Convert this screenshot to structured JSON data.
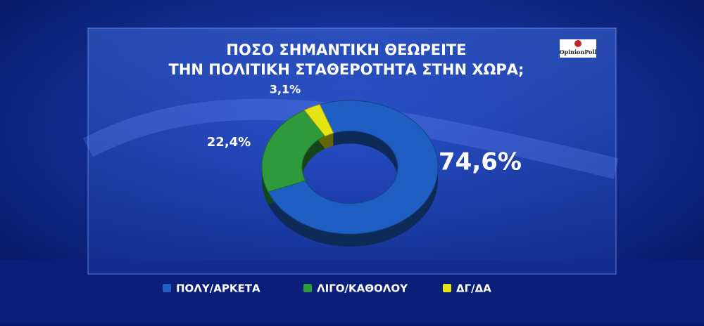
{
  "logo": "OpinionPoll",
  "chart_data": {
    "type": "donut",
    "title": [
      "ΠΟΣΟ ΣΗΜΑΝΤΙΚΗ ΘΕΩΡΕΙΤΕ",
      "ΤΗΝ ΠΟΛΙΤΙΚΗ ΣΤΑΘΕΡΟΤΗΤΑ ΣΤΗΝ ΧΩΡΑ;"
    ],
    "categories": [
      "ΠΟΛΥ/ΑΡΚΕΤΑ",
      "ΛΙΓΟ/ΚΑΘΟΛΟΥ",
      "ΔΓ/ΔΑ"
    ],
    "values": [
      74.6,
      22.4,
      3.1
    ],
    "value_labels": [
      "74,6%",
      "22,4%",
      "3,1%"
    ],
    "colors": [
      "#1f5fc4",
      "#2f9a3c",
      "#e4e414"
    ]
  }
}
